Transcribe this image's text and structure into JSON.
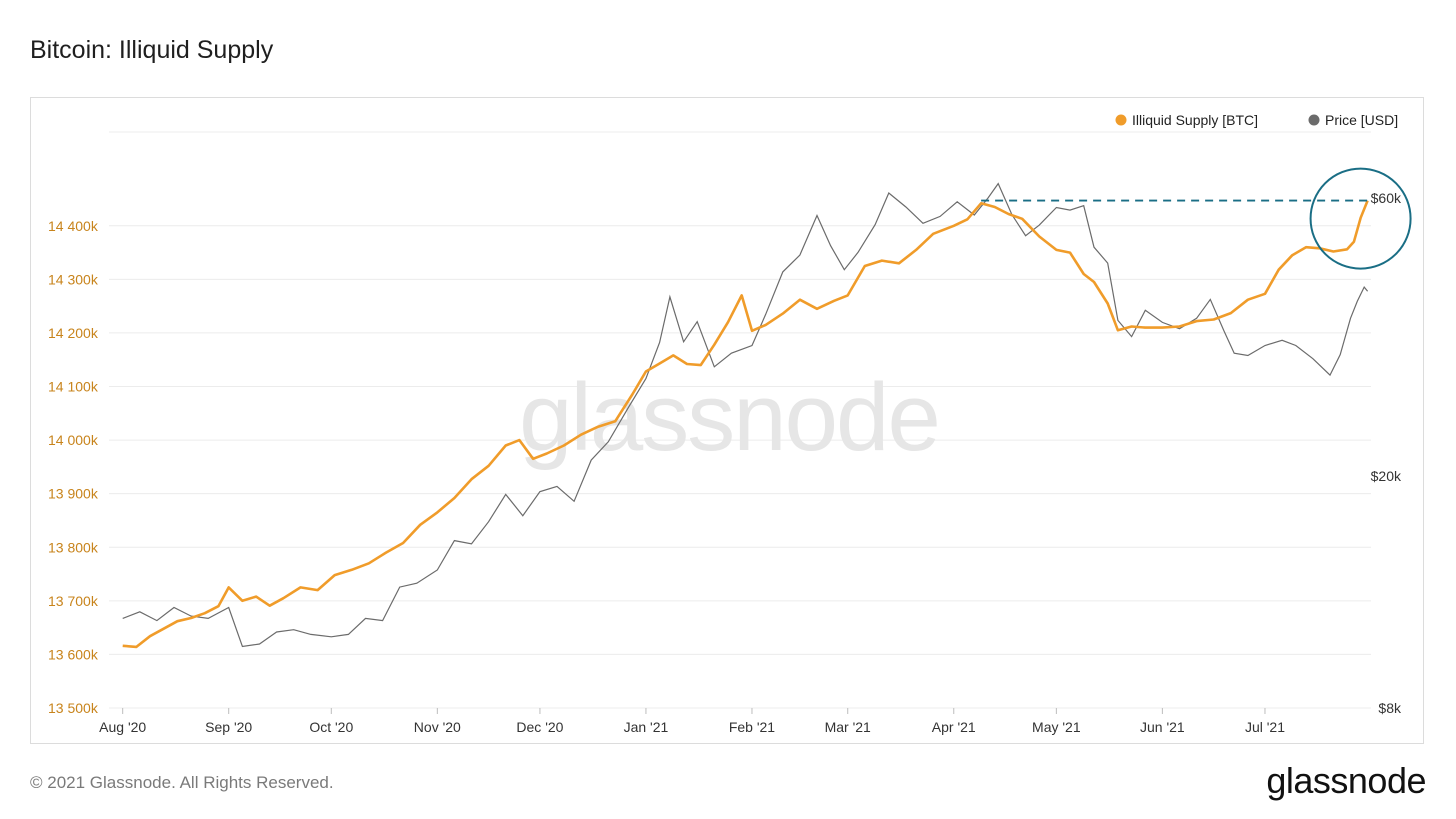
{
  "page": {
    "title": "Bitcoin: Illiquid Supply",
    "copyright": "© 2021 Glassnode. All Rights Reserved.",
    "logo": "glassnode",
    "watermark": "glassnode"
  },
  "colors": {
    "supply": "#f09c2a",
    "price": "#6b6b6b",
    "left_axis_text": "#c8841c",
    "annotation": "#1a6e85",
    "grid": "#ececec",
    "watermark": "#e6e6e6"
  },
  "chart_data": {
    "type": "line",
    "title": "Bitcoin: Illiquid Supply",
    "legend_position": "top-right",
    "grid": true,
    "x_ticks": [
      {
        "date": "2020-08-01",
        "label": "Aug '20"
      },
      {
        "date": "2020-09-01",
        "label": "Sep '20"
      },
      {
        "date": "2020-10-01",
        "label": "Oct '20"
      },
      {
        "date": "2020-11-01",
        "label": "Nov '20"
      },
      {
        "date": "2020-12-01",
        "label": "Dec '20"
      },
      {
        "date": "2021-01-01",
        "label": "Jan '21"
      },
      {
        "date": "2021-02-01",
        "label": "Feb '21"
      },
      {
        "date": "2021-03-01",
        "label": "Mar '21"
      },
      {
        "date": "2021-04-01",
        "label": "Apr '21"
      },
      {
        "date": "2021-05-01",
        "label": "May '21"
      },
      {
        "date": "2021-06-01",
        "label": "Jun '21"
      },
      {
        "date": "2021-07-01",
        "label": "Jul '21"
      }
    ],
    "left_axis": {
      "ylim": [
        13500,
        14500
      ],
      "ticks": [
        {
          "value": 13500,
          "label": "13 500k"
        },
        {
          "value": 13600,
          "label": "13 600k"
        },
        {
          "value": 13700,
          "label": "13 700k"
        },
        {
          "value": 13800,
          "label": "13 800k"
        },
        {
          "value": 13900,
          "label": "13 900k"
        },
        {
          "value": 14000,
          "label": "14 000k"
        },
        {
          "value": 14100,
          "label": "14 100k"
        },
        {
          "value": 14200,
          "label": "14 200k"
        },
        {
          "value": 14300,
          "label": "14 300k"
        },
        {
          "value": 14400,
          "label": "14 400k"
        }
      ]
    },
    "right_axis": {
      "scale": "log",
      "ticks": [
        {
          "value": 8000,
          "label": "$8k"
        },
        {
          "value": 20000,
          "label": "$20k"
        },
        {
          "value": 60000,
          "label": "$60k"
        }
      ]
    },
    "series": [
      {
        "name": "Illiquid Supply [BTC]",
        "axis": "left",
        "points": [
          [
            "2020-08-01",
            13616
          ],
          [
            "2020-08-05",
            13614
          ],
          [
            "2020-08-09",
            13634
          ],
          [
            "2020-08-13",
            13648
          ],
          [
            "2020-08-17",
            13662
          ],
          [
            "2020-08-21",
            13668
          ],
          [
            "2020-08-25",
            13677
          ],
          [
            "2020-08-29",
            13690
          ],
          [
            "2020-09-01",
            13725
          ],
          [
            "2020-09-05",
            13700
          ],
          [
            "2020-09-09",
            13708
          ],
          [
            "2020-09-13",
            13691
          ],
          [
            "2020-09-17",
            13705
          ],
          [
            "2020-09-22",
            13725
          ],
          [
            "2020-09-27",
            13720
          ],
          [
            "2020-10-02",
            13748
          ],
          [
            "2020-10-07",
            13758
          ],
          [
            "2020-10-12",
            13770
          ],
          [
            "2020-10-17",
            13790
          ],
          [
            "2020-10-22",
            13808
          ],
          [
            "2020-10-27",
            13842
          ],
          [
            "2020-11-01",
            13865
          ],
          [
            "2020-11-06",
            13892
          ],
          [
            "2020-11-11",
            13927
          ],
          [
            "2020-11-16",
            13952
          ],
          [
            "2020-11-21",
            13990
          ],
          [
            "2020-11-25",
            14000
          ],
          [
            "2020-11-29",
            13965
          ],
          [
            "2020-12-03",
            13975
          ],
          [
            "2020-12-08",
            13990
          ],
          [
            "2020-12-13",
            14010
          ],
          [
            "2020-12-18",
            14025
          ],
          [
            "2020-12-23",
            14035
          ],
          [
            "2020-12-28",
            14085
          ],
          [
            "2021-01-01",
            14128
          ],
          [
            "2021-01-05",
            14143
          ],
          [
            "2021-01-09",
            14158
          ],
          [
            "2021-01-13",
            14142
          ],
          [
            "2021-01-17",
            14140
          ],
          [
            "2021-01-21",
            14178
          ],
          [
            "2021-01-25",
            14220
          ],
          [
            "2021-01-29",
            14270
          ],
          [
            "2021-02-01",
            14204
          ],
          [
            "2021-02-05",
            14215
          ],
          [
            "2021-02-10",
            14236
          ],
          [
            "2021-02-15",
            14262
          ],
          [
            "2021-02-20",
            14245
          ],
          [
            "2021-02-25",
            14260
          ],
          [
            "2021-03-01",
            14270
          ],
          [
            "2021-03-06",
            14325
          ],
          [
            "2021-03-11",
            14335
          ],
          [
            "2021-03-16",
            14330
          ],
          [
            "2021-03-21",
            14355
          ],
          [
            "2021-03-26",
            14385
          ],
          [
            "2021-04-01",
            14400
          ],
          [
            "2021-04-05",
            14412
          ],
          [
            "2021-04-09",
            14442
          ],
          [
            "2021-04-13",
            14435
          ],
          [
            "2021-04-17",
            14422
          ],
          [
            "2021-04-21",
            14413
          ],
          [
            "2021-04-26",
            14380
          ],
          [
            "2021-05-01",
            14355
          ],
          [
            "2021-05-05",
            14350
          ],
          [
            "2021-05-09",
            14310
          ],
          [
            "2021-05-12",
            14295
          ],
          [
            "2021-05-16",
            14255
          ],
          [
            "2021-05-19",
            14205
          ],
          [
            "2021-05-23",
            14212
          ],
          [
            "2021-05-27",
            14210
          ],
          [
            "2021-06-01",
            14210
          ],
          [
            "2021-06-06",
            14212
          ],
          [
            "2021-06-11",
            14222
          ],
          [
            "2021-06-16",
            14225
          ],
          [
            "2021-06-21",
            14237
          ],
          [
            "2021-06-26",
            14262
          ],
          [
            "2021-07-01",
            14273
          ],
          [
            "2021-07-05",
            14318
          ],
          [
            "2021-07-09",
            14345
          ],
          [
            "2021-07-13",
            14360
          ],
          [
            "2021-07-17",
            14358
          ],
          [
            "2021-07-21",
            14352
          ],
          [
            "2021-07-25",
            14356
          ],
          [
            "2021-07-27",
            14370
          ],
          [
            "2021-07-29",
            14415
          ],
          [
            "2021-07-31",
            14447
          ]
        ]
      },
      {
        "name": "Price [USD]",
        "axis": "right",
        "points": [
          [
            "2020-08-01",
            11400
          ],
          [
            "2020-08-06",
            11700
          ],
          [
            "2020-08-11",
            11300
          ],
          [
            "2020-08-16",
            11900
          ],
          [
            "2020-08-21",
            11500
          ],
          [
            "2020-08-26",
            11400
          ],
          [
            "2020-09-01",
            11900
          ],
          [
            "2020-09-05",
            10200
          ],
          [
            "2020-09-10",
            10300
          ],
          [
            "2020-09-15",
            10800
          ],
          [
            "2020-09-20",
            10900
          ],
          [
            "2020-09-25",
            10700
          ],
          [
            "2020-10-01",
            10600
          ],
          [
            "2020-10-06",
            10700
          ],
          [
            "2020-10-11",
            11400
          ],
          [
            "2020-10-16",
            11300
          ],
          [
            "2020-10-21",
            12900
          ],
          [
            "2020-10-26",
            13100
          ],
          [
            "2020-11-01",
            13800
          ],
          [
            "2020-11-06",
            15500
          ],
          [
            "2020-11-11",
            15300
          ],
          [
            "2020-11-16",
            16700
          ],
          [
            "2020-11-21",
            18600
          ],
          [
            "2020-11-26",
            17100
          ],
          [
            "2020-12-01",
            18800
          ],
          [
            "2020-12-06",
            19200
          ],
          [
            "2020-12-11",
            18100
          ],
          [
            "2020-12-16",
            21300
          ],
          [
            "2020-12-21",
            22900
          ],
          [
            "2020-12-27",
            26300
          ],
          [
            "2021-01-01",
            29400
          ],
          [
            "2021-01-05",
            33900
          ],
          [
            "2021-01-08",
            40600
          ],
          [
            "2021-01-12",
            34000
          ],
          [
            "2021-01-16",
            36800
          ],
          [
            "2021-01-21",
            30800
          ],
          [
            "2021-01-26",
            32500
          ],
          [
            "2021-02-01",
            33500
          ],
          [
            "2021-02-05",
            37900
          ],
          [
            "2021-02-10",
            44800
          ],
          [
            "2021-02-15",
            47900
          ],
          [
            "2021-02-20",
            56000
          ],
          [
            "2021-02-24",
            49700
          ],
          [
            "2021-02-28",
            45200
          ],
          [
            "2021-03-04",
            48400
          ],
          [
            "2021-03-09",
            54000
          ],
          [
            "2021-03-13",
            61200
          ],
          [
            "2021-03-18",
            57900
          ],
          [
            "2021-03-23",
            54300
          ],
          [
            "2021-03-28",
            55800
          ],
          [
            "2021-04-02",
            59100
          ],
          [
            "2021-04-07",
            56100
          ],
          [
            "2021-04-11",
            60000
          ],
          [
            "2021-04-14",
            63500
          ],
          [
            "2021-04-18",
            56200
          ],
          [
            "2021-04-22",
            51700
          ],
          [
            "2021-04-26",
            53900
          ],
          [
            "2021-05-01",
            57800
          ],
          [
            "2021-05-05",
            57200
          ],
          [
            "2021-05-09",
            58200
          ],
          [
            "2021-05-12",
            49400
          ],
          [
            "2021-05-16",
            46400
          ],
          [
            "2021-05-19",
            37000
          ],
          [
            "2021-05-23",
            34700
          ],
          [
            "2021-05-27",
            38500
          ],
          [
            "2021-06-01",
            36700
          ],
          [
            "2021-06-06",
            35800
          ],
          [
            "2021-06-11",
            37300
          ],
          [
            "2021-06-15",
            40200
          ],
          [
            "2021-06-19",
            35500
          ],
          [
            "2021-06-22",
            32500
          ],
          [
            "2021-06-26",
            32200
          ],
          [
            "2021-07-01",
            33500
          ],
          [
            "2021-07-06",
            34200
          ],
          [
            "2021-07-10",
            33500
          ],
          [
            "2021-07-15",
            31800
          ],
          [
            "2021-07-20",
            29800
          ],
          [
            "2021-07-23",
            32300
          ],
          [
            "2021-07-26",
            37300
          ],
          [
            "2021-07-28",
            39900
          ],
          [
            "2021-07-30",
            42200
          ],
          [
            "2021-07-31",
            41500
          ]
        ]
      }
    ],
    "annotations": [
      {
        "type": "hline",
        "series": "Illiquid Supply [BTC]",
        "value": 14447,
        "from": "2021-04-09",
        "to": "2021-07-31",
        "style": "dashed"
      },
      {
        "type": "circle",
        "center_date": "2021-07-31",
        "around": "latest illiquid supply high"
      }
    ]
  }
}
